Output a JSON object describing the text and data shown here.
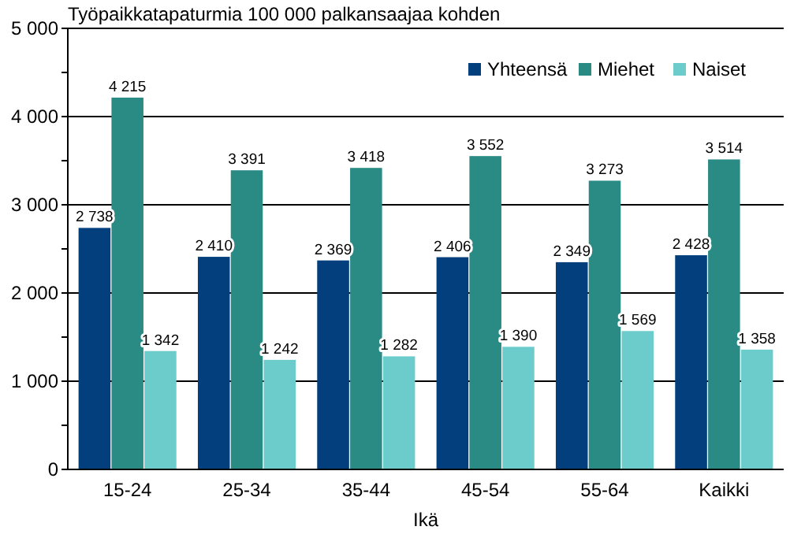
{
  "chart_data": {
    "type": "bar",
    "ylabel": "Työpaikkatapaturmia 100 000 palkansaajaa kohden",
    "xlabel": "Ikä",
    "categories": [
      "15-24",
      "25-34",
      "35-44",
      "45-54",
      "55-64",
      "Kaikki"
    ],
    "series": [
      {
        "name": "Yhteensä",
        "color": "#023f7c",
        "values": [
          2738,
          2410,
          2369,
          2406,
          2349,
          2428
        ],
        "value_labels": [
          "2 738",
          "2 410",
          "2 369",
          "2 406",
          "2 349",
          "2 428"
        ]
      },
      {
        "name": "Miehet",
        "color": "#2a8a84",
        "values": [
          4215,
          3391,
          3418,
          3552,
          3273,
          3514
        ],
        "value_labels": [
          "4 215",
          "3 391",
          "3 418",
          "3 552",
          "3 273",
          "3 514"
        ]
      },
      {
        "name": "Naiset",
        "color": "#6ccccb",
        "values": [
          1342,
          1242,
          1282,
          1390,
          1569,
          1358
        ],
        "value_labels": [
          "1 342",
          "1 242",
          "1 282",
          "1 390",
          "1 569",
          "1 358"
        ]
      }
    ],
    "ylim": [
      0,
      5000
    ],
    "yticks": [
      {
        "value": 0,
        "label": "0"
      },
      {
        "value": 500,
        "label": null
      },
      {
        "value": 1000,
        "label": "1 000"
      },
      {
        "value": 1500,
        "label": null
      },
      {
        "value": 2000,
        "label": "2 000"
      },
      {
        "value": 2500,
        "label": null
      },
      {
        "value": 3000,
        "label": "3 000"
      },
      {
        "value": 3500,
        "label": null
      },
      {
        "value": 4000,
        "label": "4 000"
      },
      {
        "value": 4500,
        "label": null
      },
      {
        "value": 5000,
        "label": "5 000"
      }
    ],
    "grid": "y",
    "legend": "top right"
  }
}
